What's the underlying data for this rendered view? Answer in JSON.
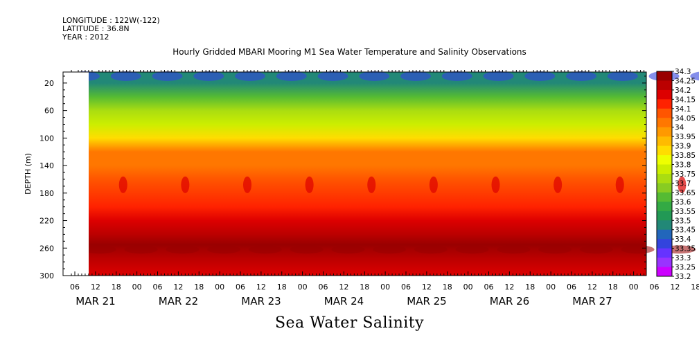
{
  "header": {
    "longitude": "LONGITUDE : 122W(-122)",
    "latitude": "LATITUDE : 36.8N",
    "year": "YEAR : 2012"
  },
  "title": "Hourly Gridded MBARI Mooring M1 Sea Water Temperature and Salinity Observations",
  "subtitle": "Sea Water Salinity",
  "colors": {
    "scale": [
      "#cc00ff",
      "#9933ff",
      "#6633ff",
      "#3344dd",
      "#2266bb",
      "#228877",
      "#229955",
      "#33aa44",
      "#55bb33",
      "#88cc22",
      "#aadd11",
      "#ccee00",
      "#eeff00",
      "#ffdd00",
      "#ffbb00",
      "#ff9900",
      "#ff7700",
      "#ff5500",
      "#ff2200",
      "#dd0000",
      "#bb0000",
      "#990000"
    ]
  },
  "chart_data": {
    "type": "heatmap",
    "ylabel": "DEPTH (m)",
    "ylim": [
      300,
      4
    ],
    "yticks": [
      20,
      60,
      100,
      140,
      180,
      220,
      260,
      300
    ],
    "x_hour_ticks": [
      "06",
      "12",
      "18",
      "00",
      "06",
      "12",
      "18",
      "00",
      "06",
      "12",
      "18",
      "00",
      "06",
      "12",
      "18",
      "00",
      "06",
      "12",
      "18",
      "00",
      "06",
      "12",
      "18",
      "00",
      "06",
      "12",
      "18",
      "00",
      "06",
      "12",
      "18",
      "00"
    ],
    "x_date_labels": [
      "MAR 21",
      "MAR 22",
      "MAR 23",
      "MAR 24",
      "MAR 25",
      "MAR 26",
      "MAR 27"
    ],
    "colorbar_labels": [
      "34.3",
      "34.25",
      "34.2",
      "34.15",
      "34.1",
      "34.05",
      "34",
      "33.95",
      "33.9",
      "33.85",
      "33.8",
      "33.75",
      "33.7",
      "33.65",
      "33.6",
      "33.55",
      "33.5",
      "33.45",
      "33.4",
      "33.35",
      "33.3",
      "33.25",
      "33.2"
    ],
    "profile": [
      {
        "depth": 4,
        "salinity": 33.45
      },
      {
        "depth": 20,
        "salinity": 33.5
      },
      {
        "depth": 40,
        "salinity": 33.6
      },
      {
        "depth": 60,
        "salinity": 33.7
      },
      {
        "depth": 80,
        "salinity": 33.8
      },
      {
        "depth": 100,
        "salinity": 33.9
      },
      {
        "depth": 120,
        "salinity": 34.0
      },
      {
        "depth": 140,
        "salinity": 34.05
      },
      {
        "depth": 160,
        "salinity": 34.08
      },
      {
        "depth": 200,
        "salinity": 34.1
      },
      {
        "depth": 220,
        "salinity": 34.15
      },
      {
        "depth": 240,
        "salinity": 34.2
      },
      {
        "depth": 255,
        "salinity": 34.28
      },
      {
        "depth": 275,
        "salinity": 34.22
      },
      {
        "depth": 300,
        "salinity": 34.15
      }
    ]
  }
}
